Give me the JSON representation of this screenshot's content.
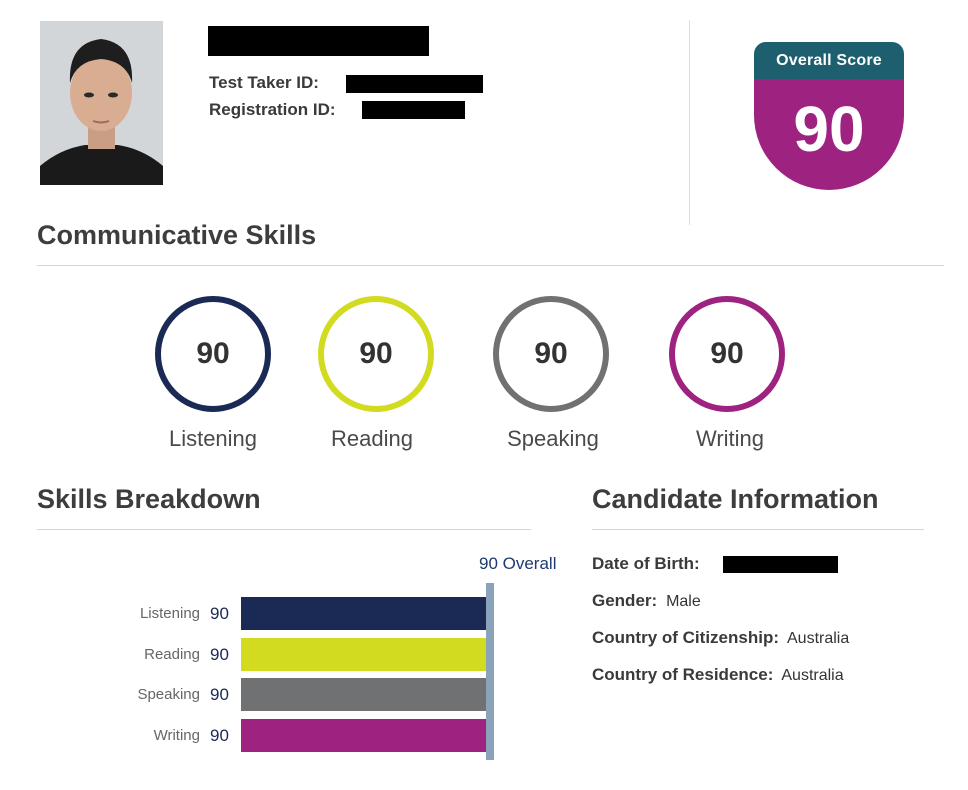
{
  "header": {
    "test_taker_id_label": "Test Taker ID:",
    "registration_id_label": "Registration ID:"
  },
  "overall": {
    "title": "Overall Score",
    "score": "90",
    "colors": {
      "header": "#1d5f6f",
      "body": "#9e2380"
    }
  },
  "communicative_skills": {
    "heading": "Communicative Skills",
    "skills": [
      {
        "label": "Listening",
        "score": "90",
        "color": "#1b2a55"
      },
      {
        "label": "Reading",
        "score": "90",
        "color": "#d3db21"
      },
      {
        "label": "Speaking",
        "score": "90",
        "color": "#707173"
      },
      {
        "label": "Writing",
        "score": "90",
        "color": "#9e2380"
      }
    ]
  },
  "skills_breakdown": {
    "heading": "Skills Breakdown",
    "overall_label": "90 Overall",
    "rows": [
      {
        "label": "Listening",
        "score": "90"
      },
      {
        "label": "Reading",
        "score": "90"
      },
      {
        "label": "Speaking",
        "score": "90"
      },
      {
        "label": "Writing",
        "score": "90"
      }
    ]
  },
  "candidate_info": {
    "heading": "Candidate Information",
    "dob_label": "Date of Birth:",
    "gender_label": "Gender:",
    "gender_value": "Male",
    "citizenship_label": "Country of Citizenship:",
    "citizenship_value": "Australia",
    "residence_label": "Country of Residence:",
    "residence_value": "Australia"
  }
}
